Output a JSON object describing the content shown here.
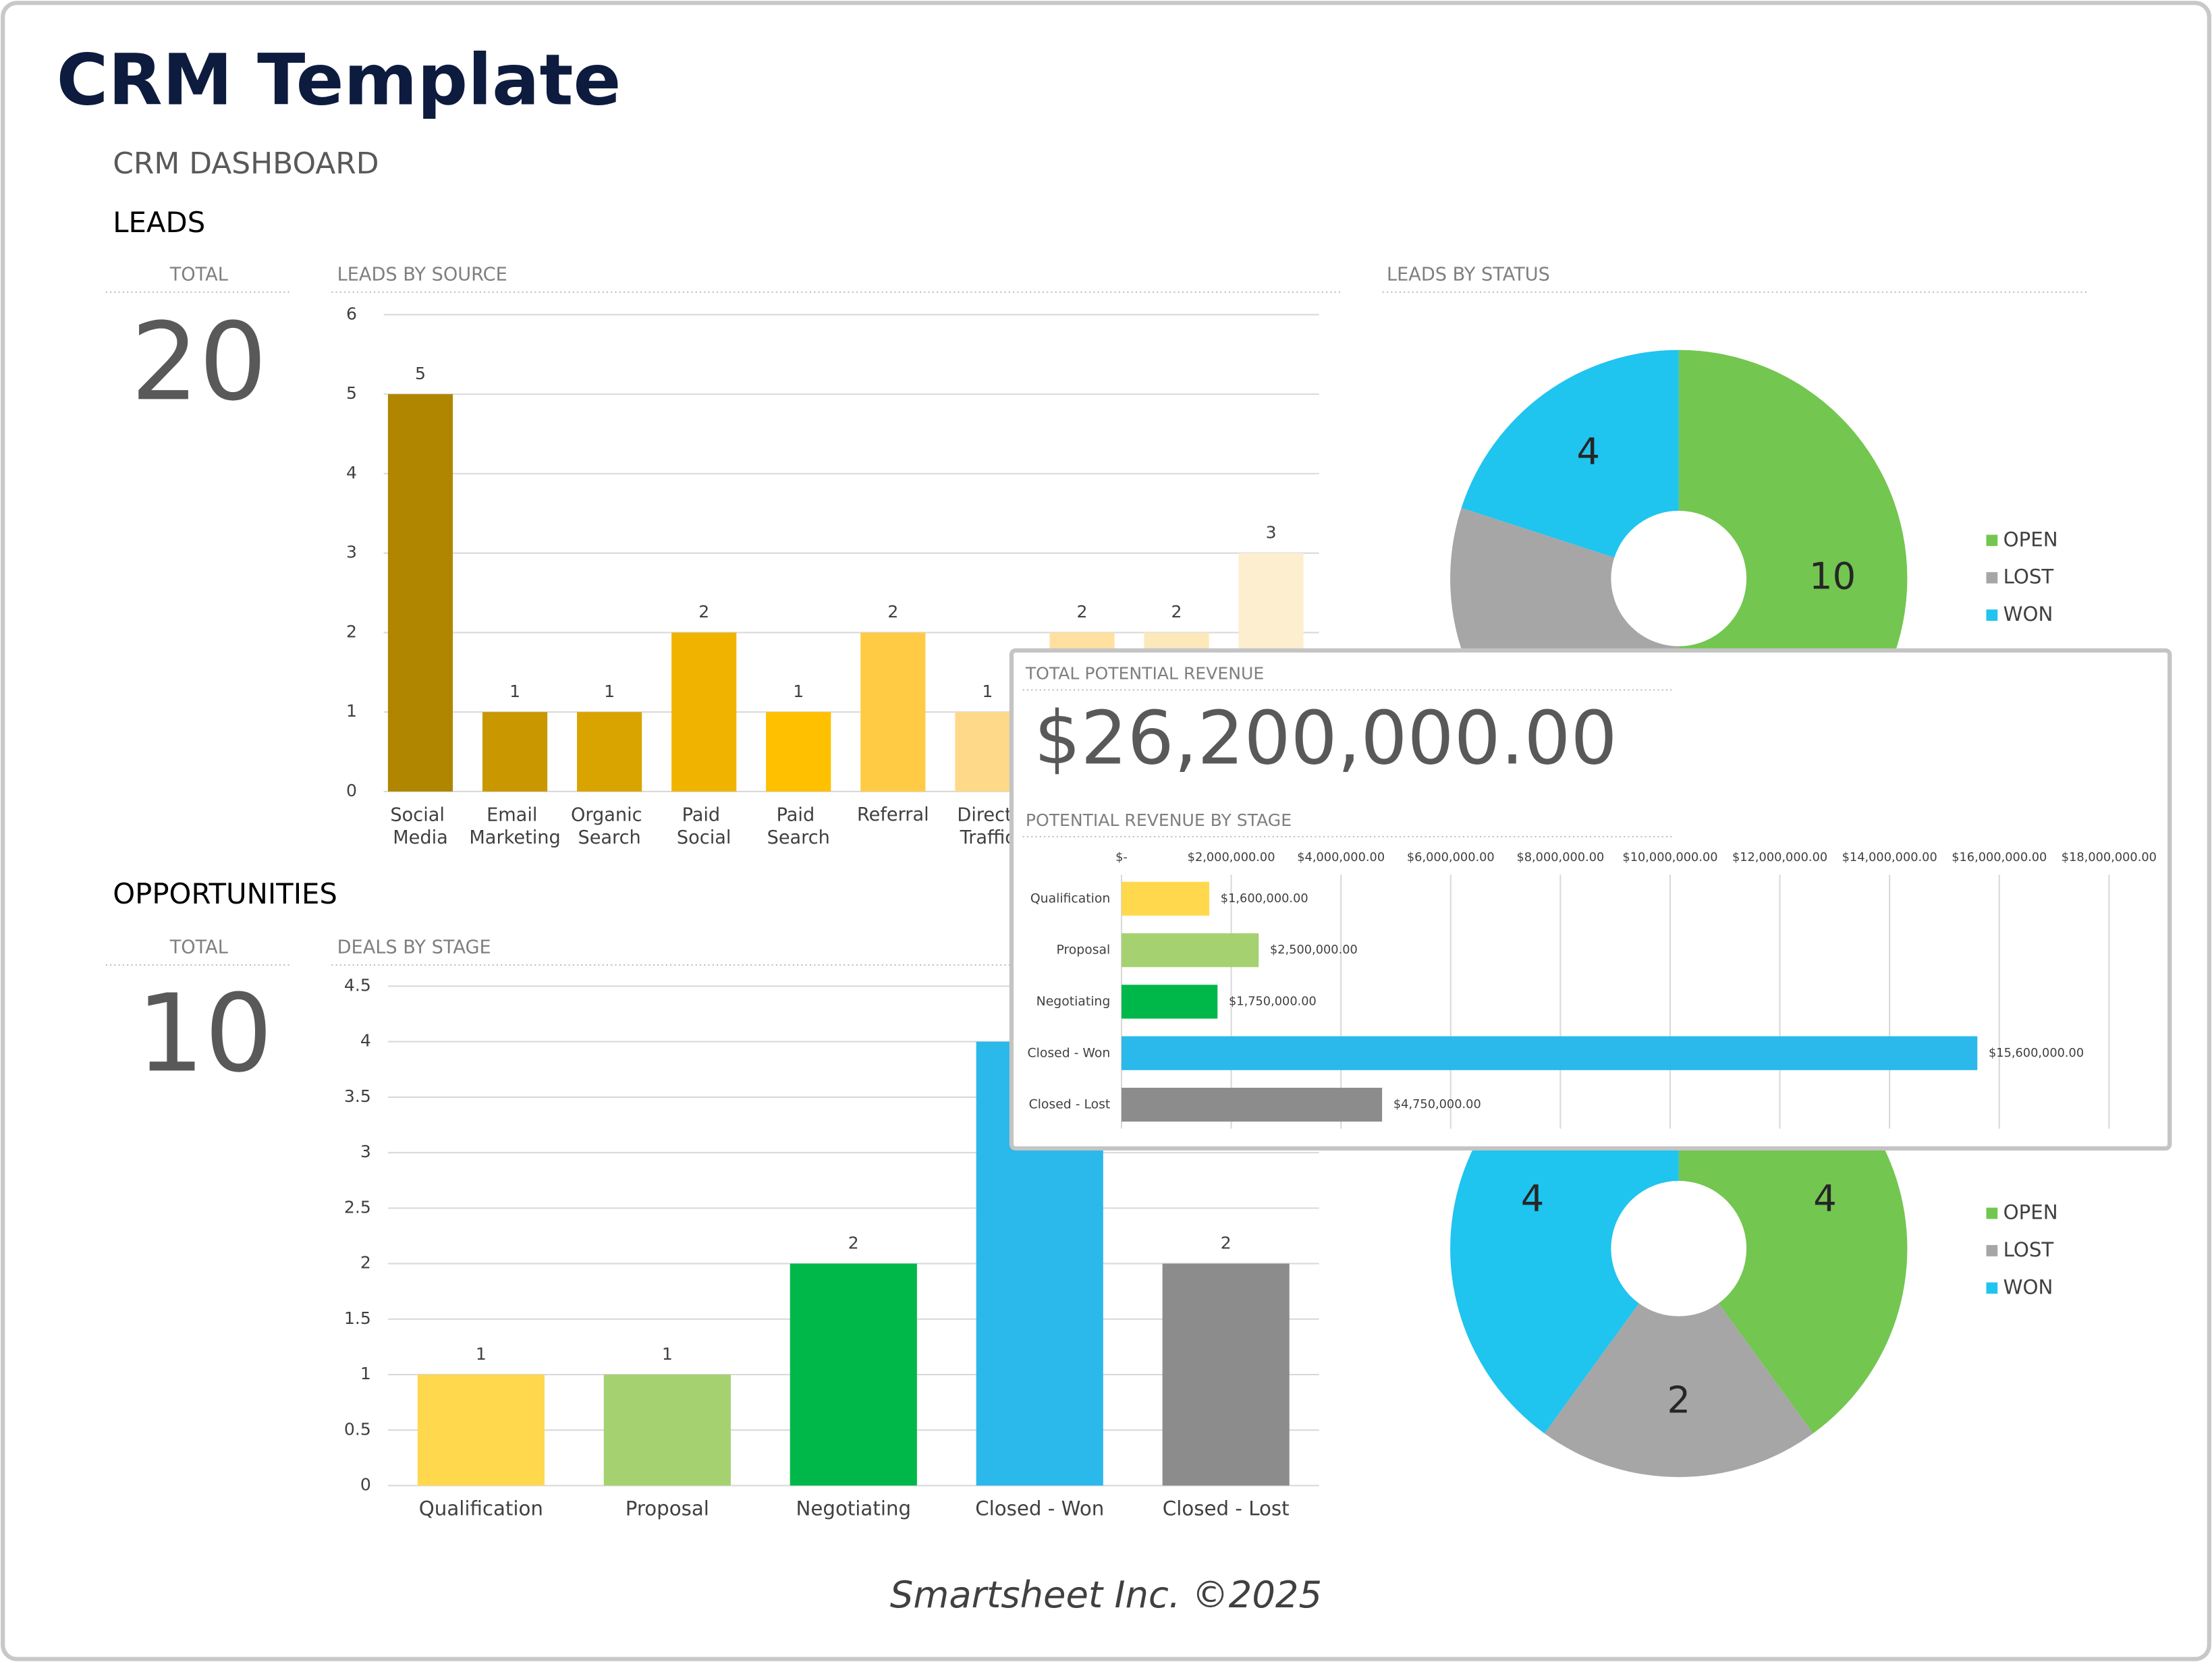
{
  "header": {
    "title": "CRM Template",
    "subtitle": "CRM DASHBOARD"
  },
  "leads": {
    "heading": "LEADS",
    "total_label": "TOTAL",
    "total": 20
  },
  "opportunities": {
    "heading": "OPPORTUNITIES",
    "total_label": "TOTAL",
    "total": 10
  },
  "revenue": {
    "total_label": "TOTAL POTENTIAL REVENUE",
    "total": "$26,200,000.00"
  },
  "footer": "Smartsheet Inc. ©2025",
  "chart_data": [
    {
      "type": "bar",
      "title": "LEADS BY SOURCE",
      "categories": [
        "Social Media",
        "Email Marketing",
        "Organic Search",
        "Paid Social",
        "Paid Search",
        "Referral",
        "Direct Traffic",
        null,
        null,
        null
      ],
      "values": [
        5,
        1,
        1,
        2,
        1,
        2,
        1,
        2,
        2,
        3
      ],
      "colors": [
        "#b08600",
        "#c99700",
        "#daa400",
        "#f0b400",
        "#ffc000",
        "#ffcb45",
        "#ffd98a",
        "#ffe0a0",
        "#fde8bc",
        "#fdeecf"
      ],
      "ylim": [
        0,
        6
      ],
      "yticks": [
        0,
        1,
        2,
        3,
        4,
        5,
        6
      ],
      "grid": true
    },
    {
      "type": "pie",
      "title": "LEADS BY STATUS",
      "categories": [
        "OPEN",
        "LOST",
        "WON"
      ],
      "values": [
        10,
        6,
        4
      ],
      "colors": [
        "#73c650",
        "#a6a6a6",
        "#1fc4ef"
      ]
    },
    {
      "type": "bar",
      "title": "DEALS BY STAGE",
      "categories": [
        "Qualification",
        "Proposal",
        "Negotiating",
        "Closed - Won",
        "Closed - Lost"
      ],
      "values": [
        1,
        1,
        2,
        4,
        2
      ],
      "colors": [
        "#ffd84d",
        "#a6d170",
        "#00b84a",
        "#2bb8ea",
        "#8c8c8c"
      ],
      "ylim": [
        0,
        4.5
      ],
      "yticks": [
        0,
        0.5,
        1,
        1.5,
        2,
        2.5,
        3,
        3.5,
        4,
        4.5
      ],
      "grid": true
    },
    {
      "type": "pie",
      "categories": [
        "OPEN",
        "LOST",
        "WON"
      ],
      "values": [
        4,
        2,
        4
      ],
      "colors": [
        "#73c650",
        "#a6a6a6",
        "#1fc4ef"
      ]
    },
    {
      "type": "hbar",
      "title": "POTENTIAL REVENUE BY STAGE",
      "categories": [
        "Qualification",
        "Proposal",
        "Negotiating",
        "Closed - Won",
        "Closed - Lost"
      ],
      "values": [
        1600000,
        2500000,
        1750000,
        15600000,
        4750000
      ],
      "value_labels": [
        "$1,600,000.00",
        "$2,500,000.00",
        "$1,750,000.00",
        "$15,600,000.00",
        "$4,750,000.00"
      ],
      "colors": [
        "#ffd84d",
        "#a6d170",
        "#00b84a",
        "#2bb8ea",
        "#8c8c8c"
      ],
      "xlim": [
        0,
        18000000
      ],
      "xticks": [
        {
          "value": 0,
          "label": "$-"
        },
        {
          "value": 2000000,
          "label": "$2,000,000.00"
        },
        {
          "value": 4000000,
          "label": "$4,000,000.00"
        },
        {
          "value": 6000000,
          "label": "$6,000,000.00"
        },
        {
          "value": 8000000,
          "label": "$8,000,000.00"
        },
        {
          "value": 10000000,
          "label": "$10,000,000.00"
        },
        {
          "value": 12000000,
          "label": "$12,000,000.00"
        },
        {
          "value": 14000000,
          "label": "$14,000,000.00"
        },
        {
          "value": 16000000,
          "label": "$16,000,000.00"
        },
        {
          "value": 18000000,
          "label": "$18,000,000.00"
        }
      ],
      "grid": true
    }
  ]
}
